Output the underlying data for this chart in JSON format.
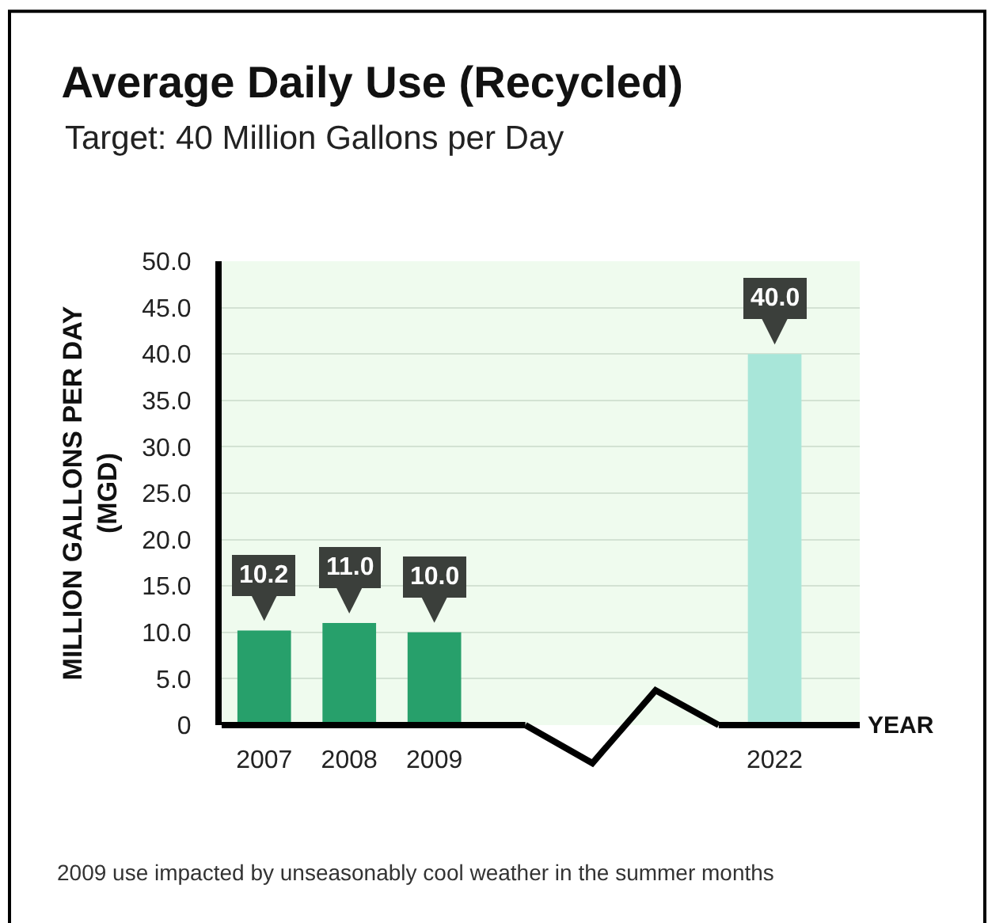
{
  "chart_data": {
    "type": "bar",
    "title": "Average Daily Use (Recycled)",
    "subtitle": "Target: 40 Million Gallons per Day",
    "xlabel": "YEAR",
    "ylabel": "MILLION GALLONS PER DAY\n(MGD)",
    "categories": [
      "2007",
      "2008",
      "2009",
      null,
      null,
      null,
      "2022"
    ],
    "values": [
      10.2,
      11.0,
      10.0,
      null,
      null,
      null,
      40.0
    ],
    "colors": [
      "#27a06b",
      "#27a06b",
      "#27a06b",
      "#27a06b",
      "#27a06b",
      "#27a06b",
      "#a8e6d9"
    ],
    "value_labels": [
      "10.2",
      "11.0",
      "10.0",
      null,
      null,
      null,
      "40.0"
    ],
    "ylim": [
      0,
      50
    ],
    "yticks": [
      0,
      {
        "value": 5,
        "label": "5.0"
      },
      {
        "value": 10,
        "label": "10.0"
      },
      {
        "value": 15,
        "label": "15.0"
      },
      {
        "value": 20,
        "label": "20.0"
      },
      {
        "value": 25,
        "label": "25.0"
      },
      {
        "value": 30,
        "label": "30.0"
      },
      {
        "value": 35,
        "label": "35.0"
      },
      {
        "value": 40,
        "label": "40.0"
      },
      {
        "value": 45,
        "label": "45.0"
      },
      {
        "value": 50,
        "label": "50.0"
      }
    ],
    "grid": "y",
    "annotations": [
      "2009 use impacted by unseasonably cool weather in the summer months"
    ]
  }
}
